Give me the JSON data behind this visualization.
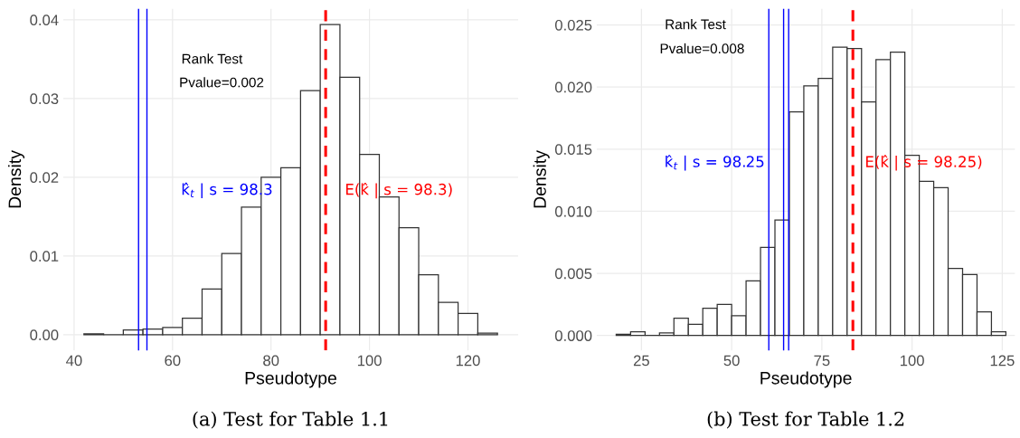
{
  "chart_data": [
    {
      "type": "histogram",
      "xlabel": "Pseudotype",
      "ylabel": "Density",
      "color": "#333333",
      "bins": [
        42,
        46,
        50,
        54,
        58,
        62,
        66,
        70,
        74,
        78,
        82,
        86,
        90,
        94,
        98,
        102,
        106,
        110,
        114,
        118,
        122,
        126
      ],
      "values": [
        0.0001,
        0,
        0.0006,
        0.0007,
        0.0009,
        0.0021,
        0.0058,
        0.0103,
        0.0162,
        0.02,
        0.0212,
        0.031,
        0.0394,
        0.0327,
        0.0229,
        0.0175,
        0.0136,
        0.0076,
        0.0041,
        0.0027,
        0.0002
      ],
      "xlim": [
        37.8,
        130.2
      ],
      "ylim": [
        -0.002,
        0.0414
      ],
      "xticks": [
        40,
        60,
        80,
        100,
        120
      ],
      "yticks": [
        {
          "value": 0,
          "label": "0.00"
        },
        {
          "value": 0.01,
          "label": "0.01"
        },
        {
          "value": 0.02,
          "label": "0.02"
        },
        {
          "value": 0.03,
          "label": "0.03"
        },
        {
          "value": 0.04,
          "label": "0.04"
        }
      ],
      "grid": true,
      "ref_lines": [
        {
          "axis": "x",
          "value": 53.1,
          "color": "#0000ff",
          "line_style": "solid"
        },
        {
          "axis": "x",
          "value": 54.8,
          "color": "#0000ff",
          "line_style": "solid"
        },
        {
          "axis": "x",
          "value": 91.1,
          "color": "#ff0000",
          "line_style": "dashed"
        }
      ],
      "annotations": [
        "Rank Test",
        "Pvalue=0.002",
        "(a) Test for Table 1.1",
        "k̂$_{t}$ | s = 98.3",
        "E(k̂ | s = 98.3)"
      ]
    },
    {
      "type": "histogram",
      "xlabel": "Pseudotype",
      "ylabel": "Density",
      "color": "#333333",
      "bins": [
        18,
        22,
        26,
        30,
        34,
        38,
        42,
        46,
        50,
        54,
        58,
        62,
        66,
        70,
        74,
        78,
        82,
        86,
        90,
        94,
        98,
        102,
        106,
        110,
        114,
        118,
        122,
        126
      ],
      "values": [
        0.0001,
        0.0003,
        0,
        0.0002,
        0.0014,
        0.0009,
        0.0022,
        0.0025,
        0.0016,
        0.0044,
        0.0071,
        0.0093,
        0.018,
        0.0201,
        0.0207,
        0.0232,
        0.0231,
        0.0188,
        0.0222,
        0.0228,
        0.0145,
        0.0124,
        0.0119,
        0.0054,
        0.0049,
        0.0019,
        0.0003
      ],
      "xlim": [
        12.6,
        128.5
      ],
      "ylim": [
        -0.0012,
        0.0263
      ],
      "xticks": [
        25,
        50,
        75,
        100,
        125
      ],
      "yticks": [
        {
          "value": 0,
          "label": "0.000"
        },
        {
          "value": 0.005,
          "label": "0.005"
        },
        {
          "value": 0.01,
          "label": "0.010"
        },
        {
          "value": 0.015,
          "label": "0.015"
        },
        {
          "value": 0.02,
          "label": "0.020"
        },
        {
          "value": 0.025,
          "label": "0.025"
        }
      ],
      "grid": true,
      "ref_lines": [
        {
          "axis": "x",
          "value": 60.3,
          "color": "#0000ff",
          "line_style": "solid"
        },
        {
          "axis": "x",
          "value": 64.4,
          "color": "#0000ff",
          "line_style": "solid"
        },
        {
          "axis": "x",
          "value": 65.8,
          "color": "#0000ff",
          "line_style": "solid"
        },
        {
          "axis": "x",
          "value": 83.6,
          "color": "#ff0000",
          "line_style": "dashed"
        }
      ],
      "annotations": [
        "Rank Test",
        "Pvalue=0.008",
        "(b) Test for Table 1.2",
        "k̂$_{t}$ | s = 98.25",
        "E(k̂ | s = 98.25)"
      ]
    }
  ]
}
